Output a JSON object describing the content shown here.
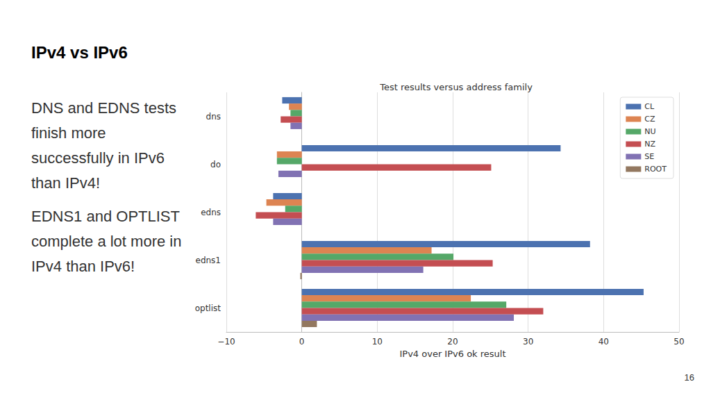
{
  "slide": {
    "title": "IPv4 vs IPv6",
    "paragraphs": [
      "DNS and EDNS tests finish more successfully in IPv6 than IPv4!",
      "EDNS1 and OPTLIST complete a lot more in IPv4 than IPv6!"
    ],
    "page_number": "16"
  },
  "chart_data": {
    "type": "bar",
    "title": "Test results versus address family",
    "x_label": "IPv4 over IPv6 ok result",
    "orientation": "horizontal",
    "categories": [
      "dns",
      "do",
      "edns",
      "edns1",
      "optlist"
    ],
    "series": [
      {
        "name": "CL",
        "color": "#4c72b0",
        "values": [
          -2.6,
          34.3,
          -3.8,
          38.2,
          45.3
        ]
      },
      {
        "name": "CZ",
        "color": "#dd8452",
        "values": [
          -1.7,
          -3.3,
          -4.7,
          17.2,
          22.4
        ]
      },
      {
        "name": "NU",
        "color": "#55a868",
        "values": [
          -1.5,
          -3.3,
          -2.2,
          20.1,
          27.1
        ]
      },
      {
        "name": "NZ",
        "color": "#c44e52",
        "values": [
          -2.8,
          25.1,
          -6.1,
          25.3,
          32.0
        ]
      },
      {
        "name": "SE",
        "color": "#8172b3",
        "values": [
          -1.5,
          -3.1,
          -3.8,
          16.1,
          28.1
        ]
      },
      {
        "name": "ROOT",
        "color": "#937860",
        "values": [
          0,
          0,
          0,
          -0.2,
          2.0
        ]
      }
    ],
    "xlim": [
      -10,
      50
    ],
    "xticks": [
      {
        "value": -10,
        "label": "−10"
      },
      0,
      10,
      20,
      30,
      40,
      50
    ],
    "grid": true,
    "legend": "upper right",
    "data_labels": false
  }
}
